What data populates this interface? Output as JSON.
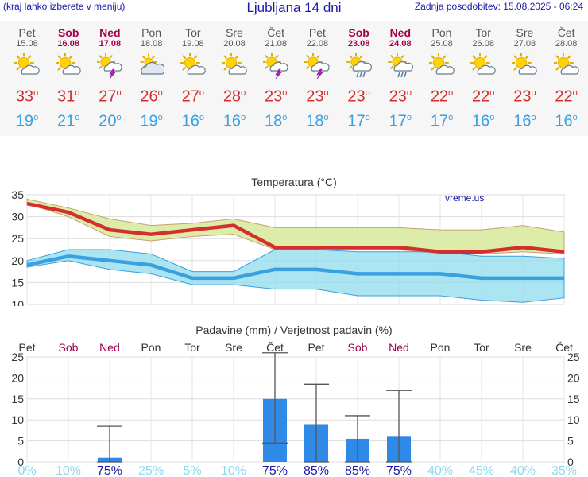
{
  "header": {
    "left_text": "(kraj lahko izberete v meniju)",
    "title": "Ljubljana 14 dni",
    "updated": "Zadnja posodobitev: 15.08.2025 - 06:24"
  },
  "forecast": [
    {
      "day": "Pet",
      "date": "15.08",
      "icon": "sun-cloud-icon",
      "hi": "33",
      "lo": "19",
      "weekend": false
    },
    {
      "day": "Sob",
      "date": "16.08",
      "icon": "sun-cloud-icon",
      "hi": "31",
      "lo": "21",
      "weekend": true
    },
    {
      "day": "Ned",
      "date": "17.08",
      "icon": "thunderstorm-icon",
      "hi": "27",
      "lo": "20",
      "weekend": true
    },
    {
      "day": "Pon",
      "date": "18.08",
      "icon": "cloudy-icon",
      "hi": "26",
      "lo": "19",
      "weekend": false
    },
    {
      "day": "Tor",
      "date": "19.08",
      "icon": "sun-cloud-icon",
      "hi": "27",
      "lo": "16",
      "weekend": false
    },
    {
      "day": "Sre",
      "date": "20.08",
      "icon": "sun-cloud-icon",
      "hi": "28",
      "lo": "16",
      "weekend": false
    },
    {
      "day": "Čet",
      "date": "21.08",
      "icon": "thunderstorm-icon",
      "hi": "23",
      "lo": "18",
      "weekend": false
    },
    {
      "day": "Pet",
      "date": "22.08",
      "icon": "thunderstorm-icon",
      "hi": "23",
      "lo": "18",
      "weekend": false
    },
    {
      "day": "Sob",
      "date": "23.08",
      "icon": "sun-cloud-rain-icon",
      "hi": "23",
      "lo": "17",
      "weekend": true
    },
    {
      "day": "Ned",
      "date": "24.08",
      "icon": "sun-cloud-rain-icon",
      "hi": "23",
      "lo": "17",
      "weekend": true
    },
    {
      "day": "Pon",
      "date": "25.08",
      "icon": "sun-cloud-icon",
      "hi": "22",
      "lo": "17",
      "weekend": false
    },
    {
      "day": "Tor",
      "date": "26.08",
      "icon": "sun-cloud-icon",
      "hi": "22",
      "lo": "16",
      "weekend": false
    },
    {
      "day": "Sre",
      "date": "27.08",
      "icon": "sun-cloud-icon",
      "hi": "23",
      "lo": "16",
      "weekend": false
    },
    {
      "day": "Čet",
      "date": "28.08",
      "icon": "sun-cloud-icon",
      "hi": "22",
      "lo": "16",
      "weekend": false
    }
  ],
  "colors": {
    "hi": "#d42e2e",
    "lo": "#3aa0e0",
    "weekend": "#a0004a",
    "hi_band": "#d9eaa0",
    "lo_band": "#8fdcec",
    "overlap_band": "#8ccf7f",
    "bar": "#2e8ae6",
    "prob_high": "#1a1aa6",
    "prob_low": "#8fd8f0"
  },
  "chart_data": [
    {
      "type": "line",
      "title": "Temperatura (°C)",
      "watermark": "vreme.us",
      "x": [
        "15.08",
        "16.08",
        "17.08",
        "18.08",
        "19.08",
        "20.08",
        "21.08",
        "22.08",
        "23.08",
        "24.08",
        "25.08",
        "26.08",
        "27.08",
        "28.08"
      ],
      "ylim": [
        10,
        35
      ],
      "yticks": [
        10,
        15,
        20,
        25,
        30,
        35
      ],
      "grid": true,
      "series": [
        {
          "name": "max",
          "values": [
            33,
            31,
            27,
            26,
            27,
            28,
            23,
            23,
            23,
            23,
            22,
            22,
            23,
            22
          ],
          "band_low": [
            33,
            30,
            25.5,
            24.5,
            25.5,
            26,
            22.5,
            22.5,
            22.5,
            22.5,
            21.5,
            21.5,
            22,
            21.5
          ],
          "band_high": [
            34,
            32,
            29.5,
            28,
            28.5,
            29.5,
            27.5,
            27.5,
            27.5,
            27.5,
            27,
            27,
            28,
            26.5
          ]
        },
        {
          "name": "min",
          "values": [
            19,
            21,
            20,
            19,
            16,
            16,
            18,
            18,
            17,
            17,
            17,
            16,
            16,
            16
          ],
          "band_low": [
            18.5,
            20,
            18,
            17,
            14.5,
            14.5,
            13.5,
            13.5,
            12,
            12,
            12,
            11,
            10.5,
            11.5
          ],
          "band_high": [
            20,
            22.5,
            22.5,
            21.5,
            17.5,
            17.5,
            22.5,
            22.5,
            22,
            22,
            22,
            21,
            21,
            20.5
          ]
        }
      ]
    },
    {
      "type": "bar",
      "title": "Padavine (mm) / Verjetnost padavin (%)",
      "categories": [
        "Pet",
        "Sob",
        "Ned",
        "Pon",
        "Tor",
        "Sre",
        "Čet",
        "Pet",
        "Sob",
        "Ned",
        "Pon",
        "Tor",
        "Sre",
        "Čet"
      ],
      "weekend": [
        false,
        true,
        true,
        false,
        false,
        false,
        false,
        false,
        true,
        true,
        false,
        false,
        false,
        false
      ],
      "values": [
        0,
        0,
        1,
        0,
        0,
        0,
        15,
        9,
        5.5,
        6,
        0,
        0,
        0,
        0
      ],
      "error_low": [
        0,
        0,
        0,
        0,
        0,
        0,
        4.5,
        0,
        0,
        0,
        0,
        0,
        0,
        0
      ],
      "error_high": [
        0,
        0,
        8.5,
        0,
        0,
        0,
        26,
        18.5,
        11,
        17,
        0,
        0,
        0,
        0
      ],
      "probability": [
        "0%",
        "10%",
        "75%",
        "25%",
        "5%",
        "10%",
        "75%",
        "85%",
        "85%",
        "75%",
        "40%",
        "45%",
        "40%",
        "35%"
      ],
      "probability_high": [
        false,
        false,
        true,
        false,
        false,
        false,
        true,
        true,
        true,
        true,
        false,
        false,
        false,
        false
      ],
      "ylim": [
        0,
        25
      ],
      "yticks": [
        0,
        5,
        10,
        15,
        20,
        25
      ]
    }
  ]
}
